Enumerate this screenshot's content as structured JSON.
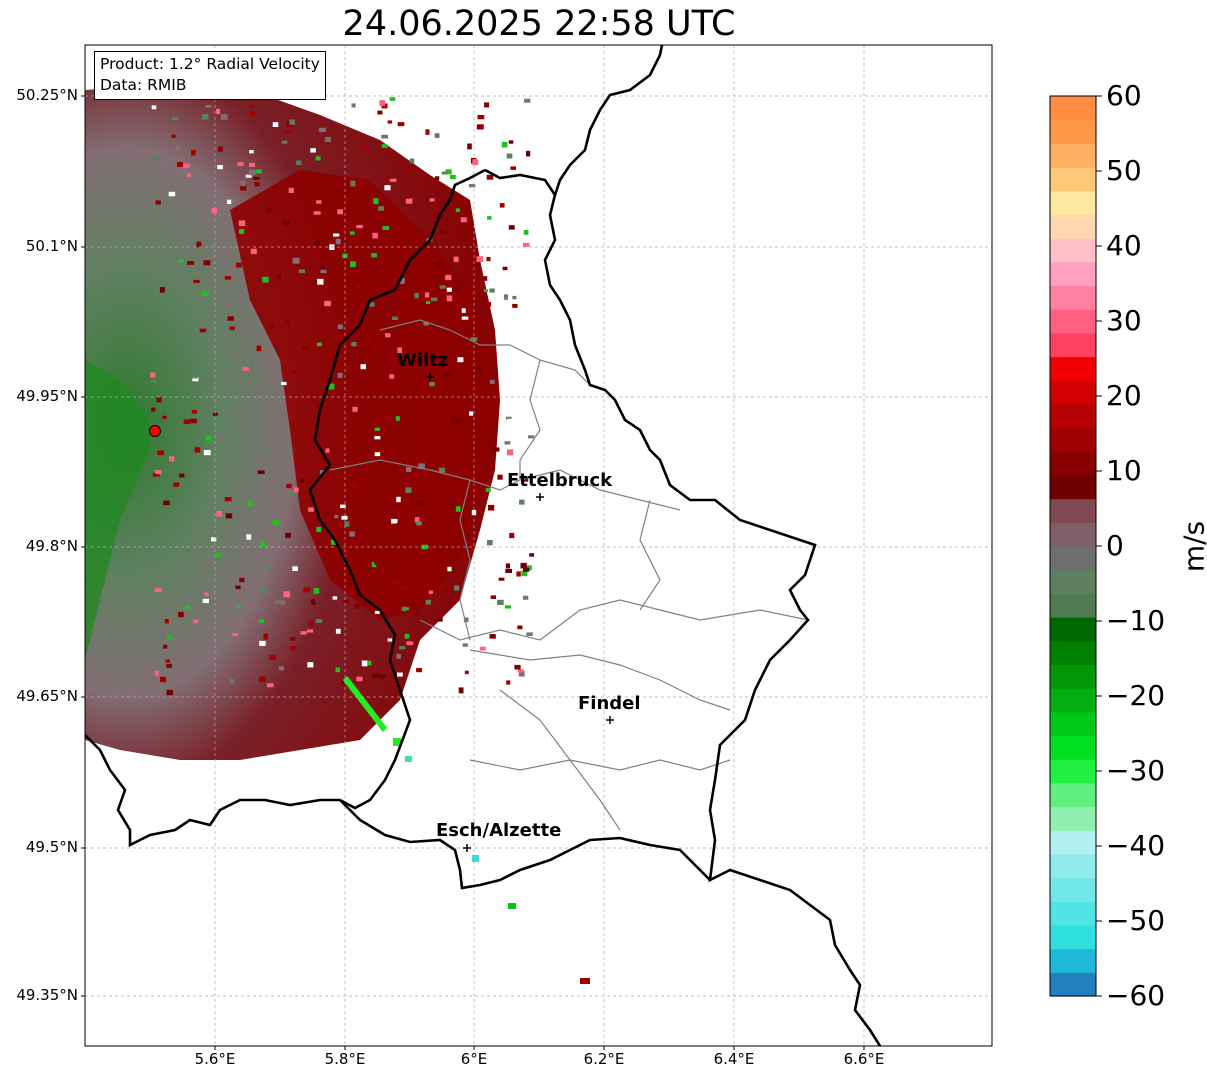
{
  "title": "24.06.2025 22:58 UTC",
  "infobox": {
    "product": "Product: 1.2° Radial Velocity",
    "data": "Data: RMIB"
  },
  "axes": {
    "lat_ticks": [
      "50.25°N",
      "50.1°N",
      "49.95°N",
      "49.8°N",
      "49.65°N",
      "49.5°N",
      "49.35°N"
    ],
    "lon_ticks": [
      "5.6°E",
      "5.8°E",
      "6°E",
      "6.2°E",
      "6.4°E",
      "6.6°E"
    ]
  },
  "cities": [
    {
      "name": "Wiltz"
    },
    {
      "name": "Ettelbruck"
    },
    {
      "name": "Findel"
    },
    {
      "name": "Esch/Alzette"
    }
  ],
  "colorbar": {
    "unit": "m/s",
    "ticks": [
      "60",
      "50",
      "40",
      "30",
      "20",
      "10",
      "0",
      "−10",
      "−20",
      "−30",
      "−40",
      "−50",
      "−60"
    ],
    "range": [
      -60,
      60
    ],
    "colors": [
      "#2080c0",
      "#20b8d8",
      "#30e0e0",
      "#50e4e4",
      "#70e8e8",
      "#90ecec",
      "#b0f0f0",
      "#90f0b0",
      "#60f080",
      "#20f040",
      "#00e020",
      "#00c818",
      "#00b010",
      "#009808",
      "#008000",
      "#006800",
      "#507a50",
      "#607f60",
      "#706f6f",
      "#806068",
      "#804850",
      "#700000",
      "#880000",
      "#a00000",
      "#b80000",
      "#d00000",
      "#f00000",
      "#ff4060",
      "#ff6080",
      "#ff80a0",
      "#ffa0c0",
      "#ffc0c8",
      "#ffd8b0",
      "#ffe8a0",
      "#ffc878",
      "#ffb060",
      "#ff9848",
      "#ff8c40"
    ]
  },
  "radar_marker_color": "#ff0000"
}
